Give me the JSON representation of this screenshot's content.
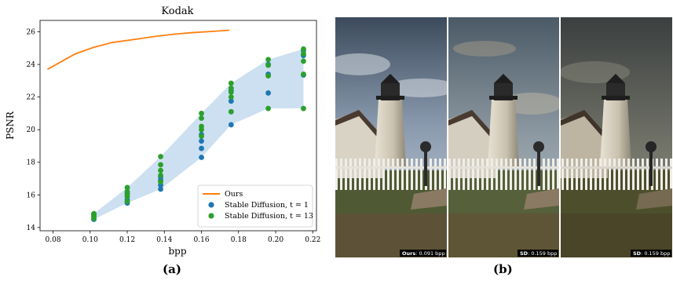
{
  "chart_data": {
    "type": "scatter",
    "title": "Kodak",
    "xlabel": "bpp",
    "ylabel": "PSNR",
    "xlim": [
      0.073,
      0.222
    ],
    "ylim": [
      13.8,
      26.7
    ],
    "xticks": [
      "0.08",
      "0.10",
      "0.12",
      "0.14",
      "0.16",
      "0.18",
      "0.20",
      "0.22"
    ],
    "yticks": [
      "14",
      "16",
      "18",
      "20",
      "22",
      "24",
      "26"
    ],
    "grid": false,
    "legend_position": "lower right",
    "series": [
      {
        "name": "Ours",
        "kind": "line",
        "color": "#ff7f0e",
        "x": [
          0.077,
          0.092,
          0.102,
          0.112,
          0.125,
          0.135,
          0.145,
          0.155,
          0.165,
          0.175
        ],
        "y": [
          23.7,
          24.65,
          25.05,
          25.35,
          25.55,
          25.72,
          25.85,
          25.95,
          26.02,
          26.1
        ]
      },
      {
        "name": "Stable Diffusion, t = 1",
        "kind": "scatter",
        "color": "#1f77b4",
        "x": [
          0.102,
          0.102,
          0.102,
          0.12,
          0.12,
          0.12,
          0.12,
          0.138,
          0.138,
          0.138,
          0.138,
          0.16,
          0.16,
          0.16,
          0.16,
          0.176,
          0.176,
          0.176,
          0.176,
          0.196,
          0.196,
          0.196,
          0.215,
          0.215,
          0.215
        ],
        "y": [
          14.5,
          14.65,
          14.8,
          15.5,
          15.7,
          15.9,
          16.1,
          16.35,
          16.6,
          16.9,
          17.1,
          18.3,
          18.85,
          19.3,
          19.7,
          20.3,
          21.1,
          21.75,
          22.4,
          22.25,
          23.4,
          24.0,
          23.35,
          24.55,
          24.85
        ]
      },
      {
        "name": "Stable Diffusion, t = 13",
        "kind": "scatter",
        "color": "#2ca02c",
        "x": [
          0.102,
          0.102,
          0.102,
          0.102,
          0.12,
          0.12,
          0.12,
          0.12,
          0.12,
          0.138,
          0.138,
          0.138,
          0.138,
          0.138,
          0.16,
          0.16,
          0.16,
          0.16,
          0.16,
          0.176,
          0.176,
          0.176,
          0.176,
          0.176,
          0.196,
          0.196,
          0.196,
          0.196,
          0.215,
          0.215,
          0.215,
          0.215,
          0.215
        ],
        "y": [
          14.55,
          14.7,
          14.8,
          14.85,
          15.6,
          15.9,
          16.05,
          16.2,
          16.45,
          16.8,
          17.2,
          17.5,
          17.85,
          18.35,
          19.6,
          20.0,
          20.2,
          20.7,
          21.0,
          21.1,
          22.0,
          22.3,
          22.55,
          22.85,
          21.3,
          23.3,
          23.95,
          24.3,
          21.3,
          23.4,
          24.2,
          24.65,
          24.95
        ]
      }
    ],
    "band": {
      "color": "#bcd6ec",
      "x": [
        0.102,
        0.12,
        0.138,
        0.16,
        0.176,
        0.196,
        0.215
      ],
      "y_low": [
        14.5,
        15.5,
        16.35,
        18.3,
        20.3,
        21.3,
        21.3
      ],
      "y_high": [
        14.85,
        16.45,
        18.35,
        21.0,
        22.85,
        24.3,
        24.95
      ]
    }
  },
  "panel_b": {
    "tiles": [
      {
        "method": "Ours",
        "rate": ": 0.091 bpp"
      },
      {
        "method": "SD",
        "rate": ": 0.159 bpp"
      },
      {
        "method": "SD",
        "rate": ": 0.159 bpp"
      }
    ]
  },
  "captions": {
    "a": "(a)",
    "b": "(b)"
  }
}
